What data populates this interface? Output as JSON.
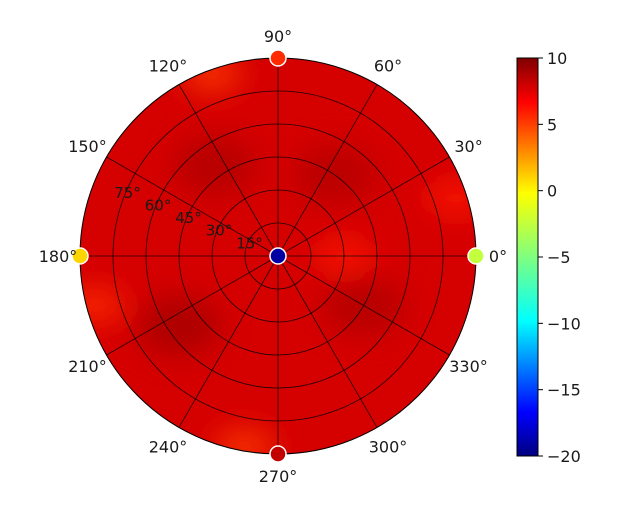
{
  "chart_data": {
    "type": "heatmap",
    "projection": "polar",
    "title": "",
    "theta_tick_labels": [
      "0°",
      "30°",
      "60°",
      "90°",
      "120°",
      "150°",
      "180°",
      "210°",
      "240°",
      "270°",
      "300°",
      "330°"
    ],
    "theta_ticks_deg": [
      0,
      30,
      60,
      90,
      120,
      150,
      180,
      210,
      240,
      270,
      300,
      330
    ],
    "r_tick_labels": [
      "15°",
      "30°",
      "45°",
      "60°",
      "75°"
    ],
    "r_ticks": [
      15,
      30,
      45,
      60,
      75
    ],
    "r_lim": [
      0,
      90
    ],
    "grid": true,
    "colormap": "jet",
    "colorbar": {
      "range": [
        -20,
        10
      ],
      "tick_labels": [
        "10",
        "5",
        "0",
        "−5",
        "−10",
        "−15",
        "−20"
      ],
      "ticks": [
        10,
        5,
        0,
        -5,
        -10,
        -15,
        -20
      ]
    },
    "field": {
      "background_value": 7.5,
      "dark_regions": [
        {
          "theta_deg": 215,
          "r": 55,
          "value": 9.0
        },
        {
          "theta_deg": 125,
          "r": 50,
          "value": 8.6
        },
        {
          "theta_deg": 55,
          "r": 45,
          "value": 8.5
        },
        {
          "theta_deg": 330,
          "r": 45,
          "value": 8.6
        }
      ],
      "light_regions": [
        {
          "theta_deg": 110,
          "r": 88,
          "value": 4.5
        },
        {
          "theta_deg": 260,
          "r": 88,
          "value": 4.5
        },
        {
          "theta_deg": 195,
          "r": 86,
          "value": 5.0
        },
        {
          "theta_deg": 0,
          "r": 30,
          "value": 5.5
        },
        {
          "theta_deg": 18,
          "r": 85,
          "value": 5.5
        }
      ]
    },
    "markers": [
      {
        "theta_deg": 90,
        "r": 90,
        "value": 5
      },
      {
        "theta_deg": 180,
        "r": 90,
        "value": 0
      },
      {
        "theta_deg": 0,
        "r": 90,
        "value": -3
      },
      {
        "theta_deg": 270,
        "r": 90,
        "value": 8
      },
      {
        "theta_deg": 0,
        "r": 0,
        "value": -19
      }
    ]
  }
}
